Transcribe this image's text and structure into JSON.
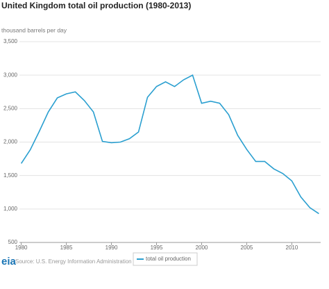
{
  "chart_data": {
    "type": "line",
    "title": "United Kingdom total oil production (1980-2013)",
    "y_label": "thousand barrels per day",
    "x": [
      1980,
      1981,
      1982,
      1983,
      1984,
      1985,
      1986,
      1987,
      1988,
      1989,
      1990,
      1991,
      1992,
      1993,
      1994,
      1995,
      1996,
      1997,
      1998,
      1999,
      2000,
      2001,
      2002,
      2003,
      2004,
      2005,
      2006,
      2007,
      2008,
      2009,
      2010,
      2011,
      2012,
      2013
    ],
    "series": [
      {
        "name": "total oil production",
        "color": "#2a9fd0",
        "values": [
          1680,
          1885,
          2160,
          2450,
          2660,
          2720,
          2750,
          2620,
          2450,
          2010,
          1990,
          2000,
          2050,
          2150,
          2670,
          2830,
          2900,
          2830,
          2930,
          3000,
          2580,
          2610,
          2580,
          2410,
          2100,
          1890,
          1710,
          1710,
          1600,
          1530,
          1420,
          1180,
          1020,
          930
        ]
      }
    ],
    "xlim": [
      1979.8,
      2013.2
    ],
    "xticks": [
      1980,
      1985,
      1990,
      1995,
      2000,
      2005,
      2010
    ],
    "ylim": [
      500,
      3500
    ],
    "yticks": [
      {
        "value": 500,
        "label": "500"
      },
      {
        "value": 1000,
        "label": "1,000"
      },
      {
        "value": 1500,
        "label": "1,500"
      },
      {
        "value": 2000,
        "label": "2,000"
      },
      {
        "value": 2500,
        "label": "2,500"
      },
      {
        "value": 3000,
        "label": "3,000"
      },
      {
        "value": 3500,
        "label": "3,500"
      }
    ],
    "grid": true,
    "legend": "bottom",
    "logo": "eia",
    "source": "Source: U.S. Energy Information Administration"
  }
}
